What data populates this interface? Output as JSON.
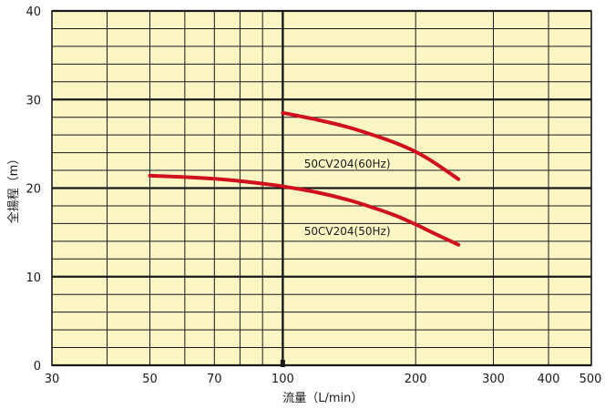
{
  "chart_data": {
    "type": "line",
    "xlabel": "流量（L/min）",
    "ylabel": "全揚程（m）",
    "xscale": "log",
    "xlim": [
      30,
      500
    ],
    "ylim": [
      0,
      40
    ],
    "x_ticks": [
      30,
      50,
      70,
      100,
      200,
      300,
      400,
      500
    ],
    "x_tick_labels": [
      "30",
      "50",
      "70",
      "100",
      "200",
      "300",
      "400",
      "500"
    ],
    "y_ticks": [
      0,
      10,
      20,
      30,
      40
    ],
    "y_tick_labels": [
      "0",
      "10",
      "20",
      "30",
      "40"
    ],
    "x_gridlines": [
      30,
      40,
      50,
      60,
      70,
      80,
      90,
      100,
      200,
      300,
      400,
      500
    ],
    "y_minor_step": 2,
    "grid": true,
    "background_color": "#fcf6c5",
    "grid_color": "#1a1a1a",
    "line_color": "#d0101e",
    "series": [
      {
        "name": "50CV204(60Hz)",
        "x": [
          100,
          120,
          140,
          160,
          180,
          200,
          220,
          250
        ],
        "y": [
          28.5,
          27.7,
          26.9,
          26.0,
          25.1,
          24.1,
          22.9,
          21.0
        ]
      },
      {
        "name": "50CV204(50Hz)",
        "x": [
          50,
          60,
          70,
          80,
          90,
          100,
          120,
          140,
          160,
          180,
          200,
          220,
          250
        ],
        "y": [
          21.4,
          21.25,
          21.05,
          20.8,
          20.5,
          20.2,
          19.5,
          18.7,
          17.8,
          16.9,
          15.9,
          14.9,
          13.6
        ]
      }
    ]
  }
}
